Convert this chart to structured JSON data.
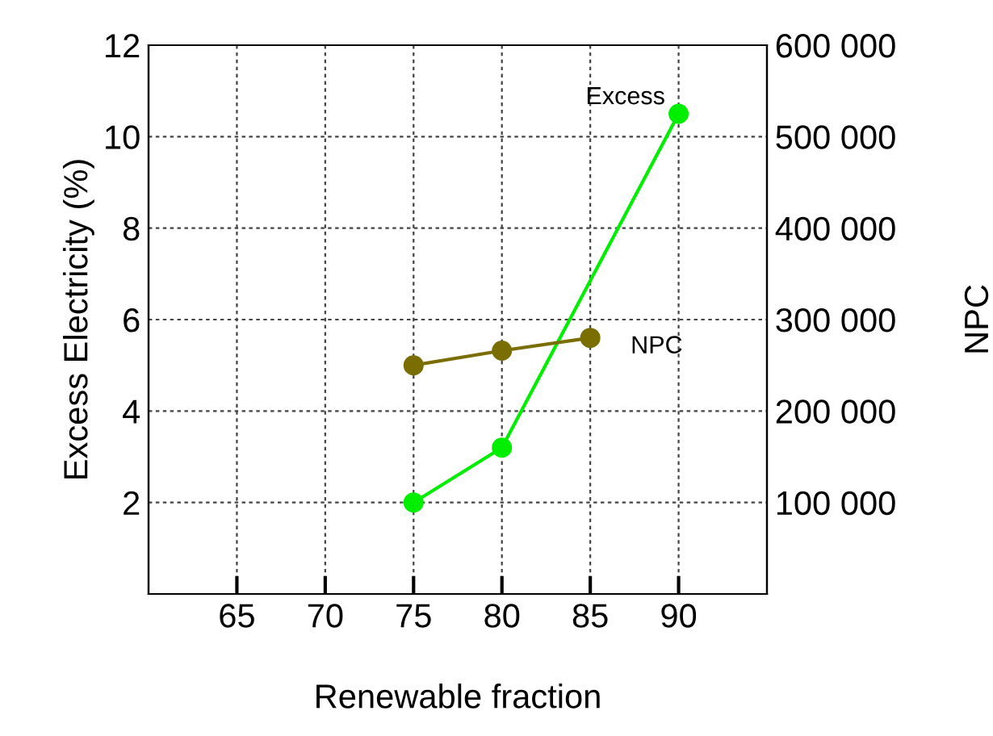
{
  "chart_data": {
    "type": "line",
    "xlabel": "Renewable fraction",
    "ylabel": "Excess Electricity (%)",
    "y2label": "NPC",
    "xlim": [
      60,
      95
    ],
    "xticks": [
      65,
      70,
      75,
      80,
      85,
      90
    ],
    "ylim": [
      0,
      12
    ],
    "yticks": [
      2,
      4,
      6,
      8,
      10,
      12
    ],
    "y2lim": [
      0,
      600000
    ],
    "y2ticks": [
      {
        "value": 100000,
        "label": "100 000"
      },
      {
        "value": 200000,
        "label": "200 000"
      },
      {
        "value": 300000,
        "label": "300 000"
      },
      {
        "value": 400000,
        "label": "400 000"
      },
      {
        "value": 500000,
        "label": "500 000"
      },
      {
        "value": 600000,
        "label": "600 000"
      }
    ],
    "grid": true,
    "marker": "circle",
    "line_style": "solid",
    "series": [
      {
        "name": "Excess",
        "color": "#00ee00",
        "x": [
          75,
          80,
          90
        ],
        "values": [
          2,
          3.2,
          10.5
        ]
      },
      {
        "name": "NPC",
        "color": "#7a6e00",
        "axis": "y2",
        "x": [
          75,
          80,
          85
        ],
        "values": [
          250000,
          266000,
          280000
        ]
      }
    ]
  }
}
